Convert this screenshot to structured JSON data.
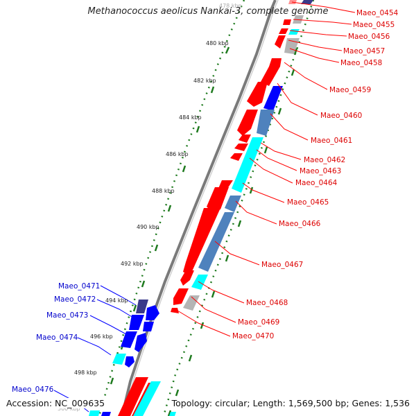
{
  "title": "Methanococcus aeolicus Nankai-3, complete genome",
  "accession": "Accession: NC_009635",
  "topology": "Topology: circular; Length: 1,569,500 bp; Genes: 1,536",
  "colors": {
    "forward": "#ff0000",
    "reverse": "#0000ff",
    "cyan": "#00ffff",
    "navy": "#3a3a8a",
    "steel": "#4f82bd",
    "grey": "#b4b4b4",
    "tick": "#1e7a1e",
    "backbone": "#7a7a7a"
  },
  "scale_labels": [
    "478 kbp",
    "480 kbp",
    "482 kbp",
    "484 kbp",
    "486 kbp",
    "488 kbp",
    "490 kbp",
    "492 kbp",
    "494 kbp",
    "496 kbp",
    "498 kbp",
    "500 kbp"
  ],
  "forward_genes": [
    "Maeo_0454",
    "Maeo_0455",
    "Maeo_0456",
    "Maeo_0457",
    "Maeo_0458",
    "Maeo_0459",
    "Maeo_0460",
    "Maeo_0461",
    "Maeo_0462",
    "Maeo_0463",
    "Maeo_0464",
    "Maeo_0465",
    "Maeo_0466",
    "Maeo_0467",
    "Maeo_0468",
    "Maeo_0469",
    "Maeo_0470"
  ],
  "reverse_genes": [
    "Maeo_0471",
    "Maeo_0472",
    "Maeo_0473",
    "Maeo_0474",
    "Maeo_0476"
  ]
}
